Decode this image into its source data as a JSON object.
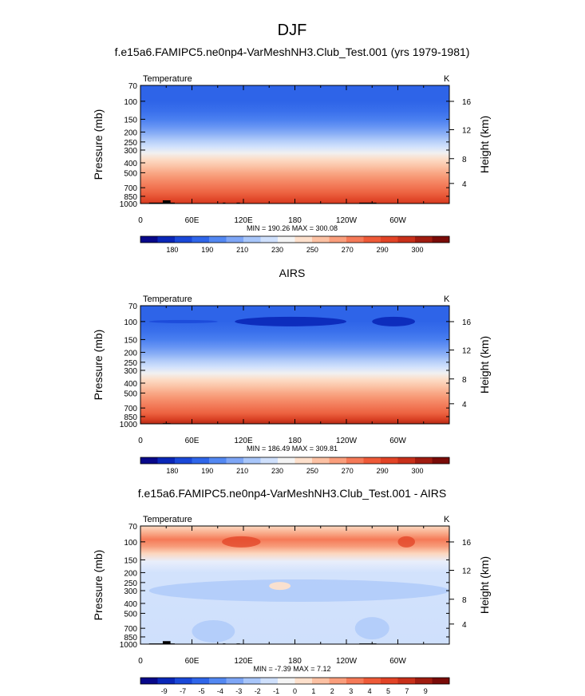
{
  "page_title": "DJF",
  "chart_data": [
    {
      "type": "heatmap",
      "title": "f.e15a6.FAMIPC5.ne0np4-VarMeshNH3.Club_Test.001 (yrs 1979-1981)",
      "left_label": "Temperature",
      "right_label": "K",
      "ylabel": "Pressure (mb)",
      "ylabel_right": "Height (km)",
      "xticks": [
        "0",
        "60E",
        "120E",
        "180",
        "120W",
        "60W"
      ],
      "yticks": [
        "70",
        "100",
        "150",
        "200",
        "250",
        "300",
        "400",
        "500",
        "700",
        "850",
        "1000"
      ],
      "yticks_right": [
        "16",
        "12",
        "8",
        "4"
      ],
      "minmax": "MIN = 190.26  MAX = 300.08",
      "colorbar_labels": [
        "180",
        "190",
        "210",
        "230",
        "250",
        "270",
        "290",
        "300"
      ],
      "colorbar_colors": [
        "#08088a",
        "#0a27b8",
        "#1a48d8",
        "#2f66ea",
        "#5388f2",
        "#7ea6f6",
        "#a8c6fa",
        "#cfe0fc",
        "#f4f4f4",
        "#fde0cc",
        "#fcc1a3",
        "#fa9e7c",
        "#f57a58",
        "#ee5a38",
        "#e24326",
        "#c8301a",
        "#a01c10",
        "#7a0b08"
      ],
      "field_stops": [
        {
          "p": 70,
          "c": "#2e64e8"
        },
        {
          "p": 100,
          "c": "#2e64e8"
        },
        {
          "p": 125,
          "c": "#3a70ec"
        },
        {
          "p": 150,
          "c": "#4a7ff0"
        },
        {
          "p": 180,
          "c": "#6a97f4"
        },
        {
          "p": 210,
          "c": "#8db1f6"
        },
        {
          "p": 240,
          "c": "#b0cbf9"
        },
        {
          "p": 280,
          "c": "#d2e2fc"
        },
        {
          "p": 320,
          "c": "#f1f0f1"
        },
        {
          "p": 370,
          "c": "#fcdcc6"
        },
        {
          "p": 430,
          "c": "#fbc4a7"
        },
        {
          "p": 500,
          "c": "#f9a886"
        },
        {
          "p": 580,
          "c": "#f68f6c"
        },
        {
          "p": 680,
          "c": "#f27755"
        },
        {
          "p": 790,
          "c": "#ec6240"
        },
        {
          "p": 900,
          "c": "#e24a2c"
        },
        {
          "p": 1000,
          "c": "#d53a20"
        }
      ],
      "features": [
        {
          "lon0": 10,
          "lon1": 40,
          "p": 980,
          "kind": "topo"
        },
        {
          "lon0": 26,
          "lon1": 35,
          "p": 930,
          "kind": "topo"
        },
        {
          "lon0": 96,
          "lon1": 99,
          "p": 980,
          "kind": "topo"
        },
        {
          "lon0": 112,
          "lon1": 116,
          "p": 980,
          "kind": "topo"
        },
        {
          "lon0": 255,
          "lon1": 275,
          "p": 980,
          "kind": "topo"
        }
      ]
    },
    {
      "type": "heatmap",
      "title": "AIRS",
      "left_label": "Temperature",
      "right_label": "K",
      "ylabel": "Pressure (mb)",
      "ylabel_right": "Height (km)",
      "xticks": [
        "0",
        "60E",
        "120E",
        "180",
        "120W",
        "60W"
      ],
      "yticks": [
        "70",
        "100",
        "150",
        "200",
        "250",
        "300",
        "400",
        "500",
        "700",
        "850",
        "1000"
      ],
      "yticks_right": [
        "16",
        "12",
        "8",
        "4"
      ],
      "minmax": "MIN = 186.49  MAX = 309.81",
      "colorbar_labels": [
        "180",
        "190",
        "210",
        "230",
        "250",
        "270",
        "290",
        "300"
      ],
      "colorbar_colors": [
        "#08088a",
        "#0a27b8",
        "#1a48d8",
        "#2f66ea",
        "#5388f2",
        "#7ea6f6",
        "#a8c6fa",
        "#cfe0fc",
        "#f4f4f4",
        "#fde0cc",
        "#fcc1a3",
        "#fa9e7c",
        "#f57a58",
        "#ee5a38",
        "#e24326",
        "#c8301a",
        "#a01c10",
        "#7a0b08"
      ],
      "field_stops": [
        {
          "p": 70,
          "c": "#2e64e8"
        },
        {
          "p": 100,
          "c": "#2e64e8"
        },
        {
          "p": 125,
          "c": "#3a70ec"
        },
        {
          "p": 150,
          "c": "#4a7ff0"
        },
        {
          "p": 180,
          "c": "#6a97f4"
        },
        {
          "p": 210,
          "c": "#8db1f6"
        },
        {
          "p": 240,
          "c": "#b0cbf9"
        },
        {
          "p": 280,
          "c": "#d2e2fc"
        },
        {
          "p": 320,
          "c": "#f1f0f1"
        },
        {
          "p": 370,
          "c": "#fcdcc6"
        },
        {
          "p": 430,
          "c": "#fbc4a7"
        },
        {
          "p": 500,
          "c": "#f9a886"
        },
        {
          "p": 580,
          "c": "#f68f6c"
        },
        {
          "p": 680,
          "c": "#f27755"
        },
        {
          "p": 790,
          "c": "#ec6240"
        },
        {
          "p": 900,
          "c": "#da4225"
        },
        {
          "p": 1000,
          "c": "#b52a16"
        }
      ],
      "features": [
        {
          "lon0": 110,
          "lon1": 240,
          "p": 100,
          "kind": "cold-lens"
        },
        {
          "lon0": 10,
          "lon1": 90,
          "p": 100,
          "kind": "cold-streak"
        },
        {
          "lon0": 270,
          "lon1": 320,
          "p": 100,
          "kind": "cold-lens"
        },
        {
          "lon0": 26,
          "lon1": 35,
          "p": 985,
          "kind": "topo"
        }
      ]
    },
    {
      "type": "heatmap",
      "title": "f.e15a6.FAMIPC5.ne0np4-VarMeshNH3.Club_Test.001 - AIRS",
      "left_label": "Temperature",
      "right_label": "K",
      "ylabel": "Pressure (mb)",
      "ylabel_right": "Height (km)",
      "xticks": [
        "0",
        "60E",
        "120E",
        "180",
        "120W",
        "60W"
      ],
      "yticks": [
        "70",
        "100",
        "150",
        "200",
        "250",
        "300",
        "400",
        "500",
        "700",
        "850",
        "1000"
      ],
      "yticks_right": [
        "16",
        "12",
        "8",
        "4"
      ],
      "minmax": "MIN = -7.39  MAX =  7.12",
      "colorbar_labels": [
        "-9",
        "-7",
        "-5",
        "-4",
        "-3",
        "-2",
        "-1",
        "0",
        "1",
        "2",
        "3",
        "4",
        "5",
        "7",
        "9"
      ],
      "colorbar_colors": [
        "#08088a",
        "#0a27b8",
        "#1a48d8",
        "#2f66ea",
        "#5388f2",
        "#7ea6f6",
        "#a8c6fa",
        "#cfe0fc",
        "#f4f4f4",
        "#fde0cc",
        "#fcc1a3",
        "#fa9e7c",
        "#f57a58",
        "#ee5a38",
        "#e24326",
        "#c8301a",
        "#a01c10",
        "#7a0b08"
      ],
      "field_stops": [
        {
          "p": 70,
          "c": "#fcd9c2"
        },
        {
          "p": 82,
          "c": "#f9ab8a"
        },
        {
          "p": 95,
          "c": "#f57a58"
        },
        {
          "p": 110,
          "c": "#f79a78"
        },
        {
          "p": 130,
          "c": "#fcd6be"
        },
        {
          "p": 155,
          "c": "#e9eefb"
        },
        {
          "p": 200,
          "c": "#d2e2fc"
        },
        {
          "p": 1000,
          "c": "#cfe0fc"
        }
      ],
      "features": [
        {
          "lon0": 95,
          "lon1": 140,
          "p": 100,
          "kind": "warm-core"
        },
        {
          "lon0": 300,
          "lon1": 320,
          "p": 100,
          "kind": "warm-core"
        },
        {
          "lon0": 10,
          "lon1": 360,
          "p": 300,
          "kind": "cool-band"
        },
        {
          "lon0": 60,
          "lon1": 110,
          "p": 750,
          "kind": "cool-band"
        },
        {
          "lon0": 250,
          "lon1": 290,
          "p": 700,
          "kind": "cool-band"
        },
        {
          "lon0": 150,
          "lon1": 175,
          "p": 270,
          "kind": "warm-blob"
        },
        {
          "lon0": 10,
          "lon1": 40,
          "p": 985,
          "kind": "topo"
        },
        {
          "lon0": 26,
          "lon1": 35,
          "p": 935,
          "kind": "topo"
        },
        {
          "lon0": 96,
          "lon1": 99,
          "p": 985,
          "kind": "topo"
        },
        {
          "lon0": 112,
          "lon1": 116,
          "p": 985,
          "kind": "topo"
        },
        {
          "lon0": 255,
          "lon1": 275,
          "p": 985,
          "kind": "topo"
        }
      ]
    }
  ]
}
